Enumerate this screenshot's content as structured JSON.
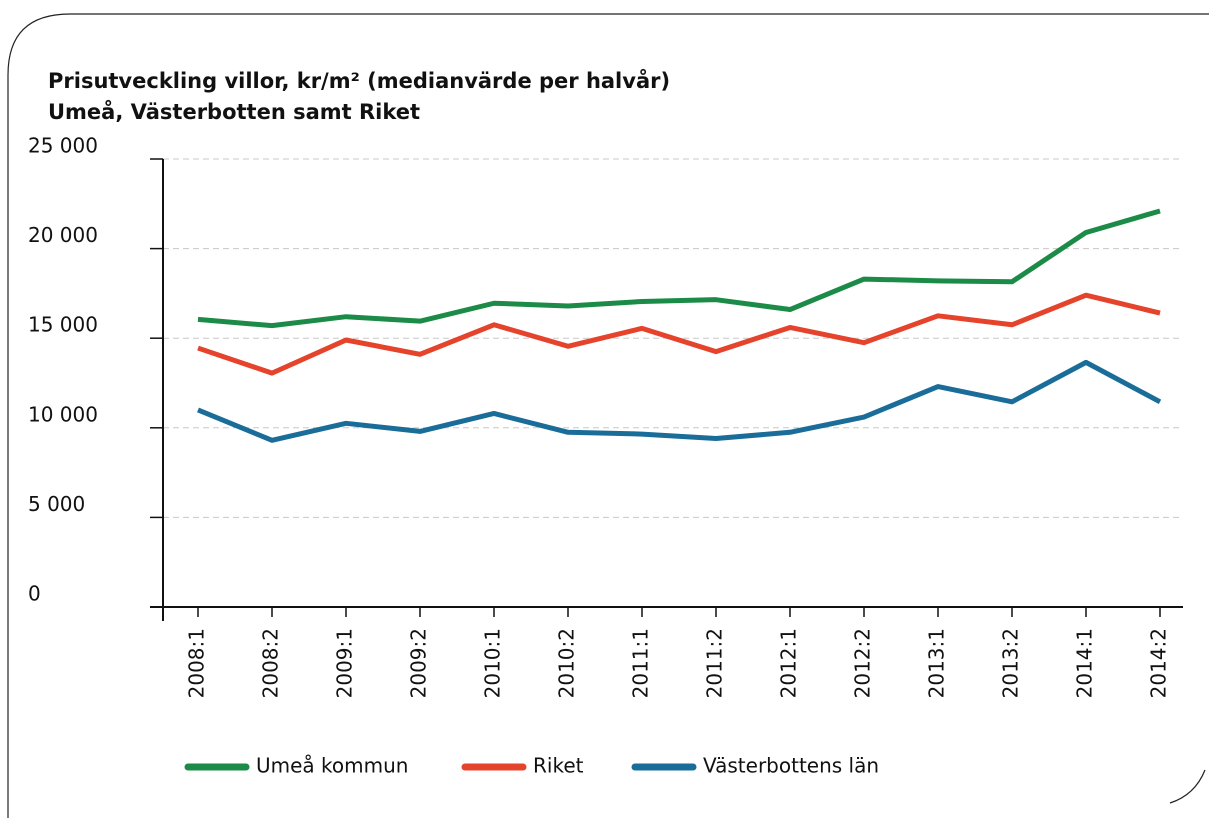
{
  "chart_data": {
    "type": "line",
    "title": "Prisutveckling villor, kr/m² (medianvärde per halvår)",
    "subtitle": "Umeå, Västerbotten samt Riket",
    "categories": [
      "2008:1",
      "2008:2",
      "2009:1",
      "2009:2",
      "2010:1",
      "2010:2",
      "2011:1",
      "2011:2",
      "2012:1",
      "2012:2",
      "2013:1",
      "2013:2",
      "2014:1",
      "2014:2"
    ],
    "series": [
      {
        "name": "Umeå kommun",
        "color": "#1b8b47",
        "values": [
          16050,
          15700,
          16200,
          15950,
          16950,
          16800,
          17050,
          17150,
          16600,
          18300,
          18200,
          18150,
          20900,
          22100
        ]
      },
      {
        "name": "Riket",
        "color": "#e5432b",
        "values": [
          14450,
          13050,
          14900,
          14100,
          15750,
          14550,
          15550,
          14250,
          15600,
          14750,
          16250,
          15750,
          17400,
          16400
        ]
      },
      {
        "name": "Västerbottens län",
        "color": "#1a6d99",
        "values": [
          11000,
          9300,
          10250,
          9800,
          10800,
          9750,
          9650,
          9400,
          9750,
          10600,
          12300,
          11450,
          13650,
          11450
        ]
      }
    ],
    "ylim": [
      0,
      25000
    ],
    "yticks": [
      0,
      {
        "value": 5000,
        "label": "5 000"
      },
      {
        "value": 10000,
        "label": "10 000"
      },
      {
        "value": 15000,
        "label": "15 000"
      },
      {
        "value": 20000,
        "label": "20 000"
      },
      {
        "value": 25000,
        "label": "25 000"
      }
    ],
    "grid": true,
    "legend": "bottom"
  }
}
